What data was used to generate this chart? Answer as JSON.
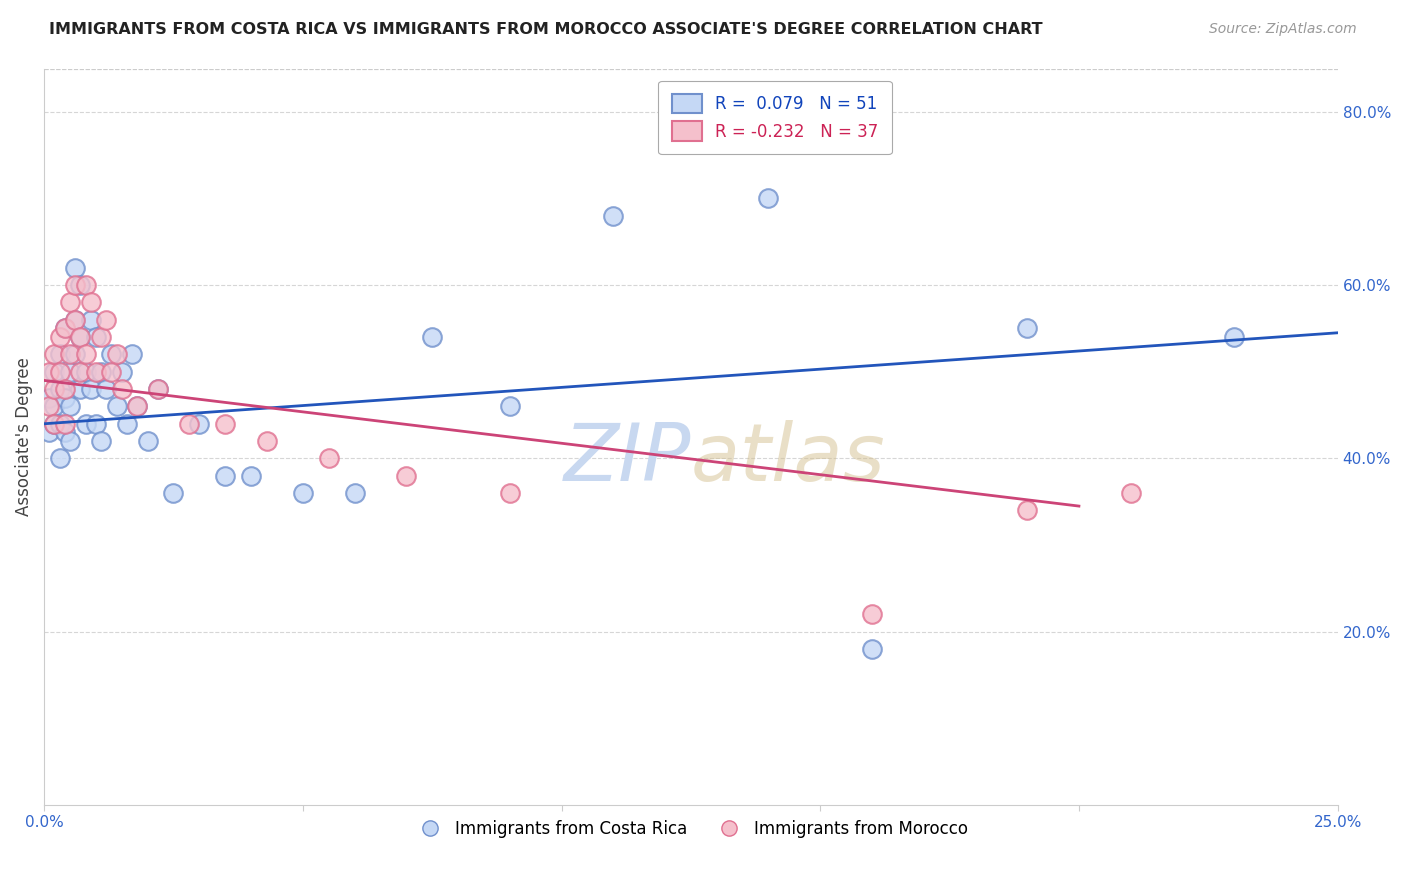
{
  "title": "IMMIGRANTS FROM COSTA RICA VS IMMIGRANTS FROM MOROCCO ASSOCIATE'S DEGREE CORRELATION CHART",
  "source": "Source: ZipAtlas.com",
  "ylabel": "Associate's Degree",
  "xlim": [
    0.0,
    0.25
  ],
  "ylim": [
    0.0,
    0.85
  ],
  "xticks": [
    0.0,
    0.05,
    0.1,
    0.15,
    0.2,
    0.25
  ],
  "yticks_right": [
    0.2,
    0.4,
    0.6,
    0.8
  ],
  "legend_cr": "R =  0.079   N = 51",
  "legend_mor": "R = -0.232   N = 37",
  "costa_rica_color_face": "#c5d8f5",
  "costa_rica_color_edge": "#7090cc",
  "morocco_color_face": "#f5c0cc",
  "morocco_color_edge": "#e07090",
  "trend_cr_color": "#2255bb",
  "trend_mor_color": "#cc4477",
  "background_color": "#ffffff",
  "grid_color": "#cccccc",
  "trend_cr_x0": 0.0,
  "trend_cr_y0": 0.44,
  "trend_cr_x1": 0.25,
  "trend_cr_y1": 0.545,
  "trend_mor_x0": 0.0,
  "trend_mor_y0": 0.49,
  "trend_mor_x1": 0.2,
  "trend_mor_y1": 0.345,
  "costa_rica_x": [
    0.001,
    0.001,
    0.002,
    0.002,
    0.002,
    0.003,
    0.003,
    0.003,
    0.003,
    0.004,
    0.004,
    0.004,
    0.005,
    0.005,
    0.005,
    0.006,
    0.006,
    0.006,
    0.007,
    0.007,
    0.007,
    0.008,
    0.008,
    0.009,
    0.009,
    0.01,
    0.01,
    0.011,
    0.011,
    0.012,
    0.013,
    0.014,
    0.015,
    0.016,
    0.017,
    0.018,
    0.02,
    0.022,
    0.025,
    0.03,
    0.035,
    0.04,
    0.05,
    0.06,
    0.075,
    0.09,
    0.11,
    0.14,
    0.16,
    0.19,
    0.23
  ],
  "costa_rica_y": [
    0.47,
    0.43,
    0.5,
    0.46,
    0.44,
    0.48,
    0.52,
    0.44,
    0.4,
    0.55,
    0.47,
    0.43,
    0.5,
    0.46,
    0.42,
    0.62,
    0.56,
    0.52,
    0.6,
    0.54,
    0.48,
    0.5,
    0.44,
    0.56,
    0.48,
    0.54,
    0.44,
    0.5,
    0.42,
    0.48,
    0.52,
    0.46,
    0.5,
    0.44,
    0.52,
    0.46,
    0.42,
    0.48,
    0.36,
    0.44,
    0.38,
    0.38,
    0.36,
    0.36,
    0.54,
    0.46,
    0.68,
    0.7,
    0.18,
    0.55,
    0.54
  ],
  "morocco_x": [
    0.001,
    0.001,
    0.002,
    0.002,
    0.002,
    0.003,
    0.003,
    0.004,
    0.004,
    0.004,
    0.005,
    0.005,
    0.006,
    0.006,
    0.007,
    0.007,
    0.008,
    0.008,
    0.009,
    0.01,
    0.011,
    0.012,
    0.013,
    0.014,
    0.015,
    0.018,
    0.022,
    0.028,
    0.035,
    0.043,
    0.055,
    0.07,
    0.09,
    0.14,
    0.16,
    0.19,
    0.21
  ],
  "morocco_y": [
    0.5,
    0.46,
    0.52,
    0.48,
    0.44,
    0.54,
    0.5,
    0.55,
    0.48,
    0.44,
    0.58,
    0.52,
    0.6,
    0.56,
    0.5,
    0.54,
    0.6,
    0.52,
    0.58,
    0.5,
    0.54,
    0.56,
    0.5,
    0.52,
    0.48,
    0.46,
    0.48,
    0.44,
    0.44,
    0.42,
    0.4,
    0.38,
    0.36,
    0.82,
    0.22,
    0.34,
    0.36
  ],
  "bottom_legend": [
    "Immigrants from Costa Rica",
    "Immigrants from Morocco"
  ]
}
